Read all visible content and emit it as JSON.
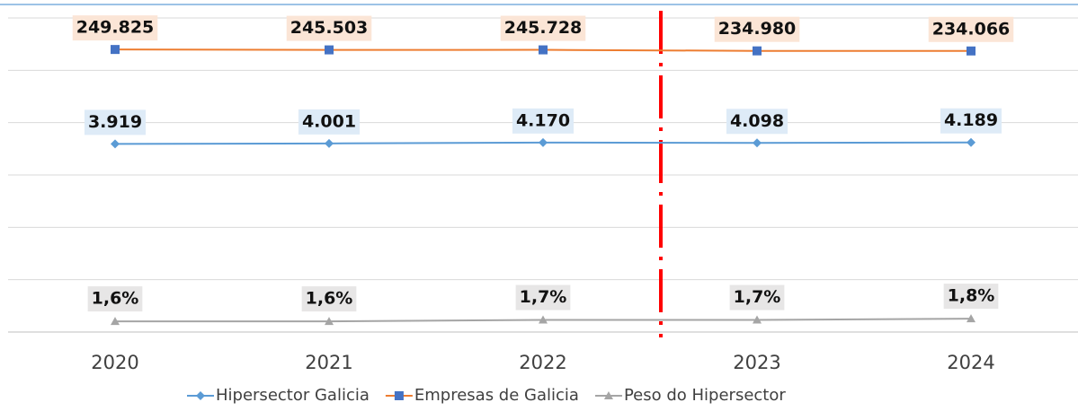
{
  "chart_data": {
    "type": "line",
    "log_scale": true,
    "categories": [
      "2020",
      "2021",
      "2022",
      "2023",
      "2024"
    ],
    "series": [
      {
        "name": "Hipersector Galicia",
        "color": "#5b9bd5",
        "marker": "diamond",
        "label_bg": "#deebf7",
        "values": [
          3919,
          4001,
          4170,
          4098,
          4189
        ],
        "value_labels": [
          "3.919",
          "4.001",
          "4.170",
          "4.098",
          "4.189"
        ]
      },
      {
        "name": "Empresas de Galicia",
        "color": "#ed7d31",
        "marker_color": "#4472c4",
        "marker": "square",
        "label_bg": "#fbe5d6",
        "values": [
          249825,
          245503,
          245728,
          234980,
          234066
        ],
        "value_labels": [
          "249.825",
          "245.503",
          "245.728",
          "234.980",
          "234.066"
        ]
      },
      {
        "name": "Peso do Hipersector",
        "color": "#a5a5a5",
        "marker": "triangle",
        "label_bg": "#e7e6e6",
        "values": [
          1.6,
          1.6,
          1.7,
          1.7,
          1.8
        ],
        "value_labels": [
          "1,6%",
          "1,6%",
          "1,7%",
          "1,7%",
          "1,8%"
        ]
      }
    ],
    "ylim": [
      1,
      1000000
    ],
    "yticks": [
      1,
      10,
      100,
      1000,
      10000,
      100000,
      1000000
    ],
    "grid": true,
    "legend": "bottom"
  }
}
